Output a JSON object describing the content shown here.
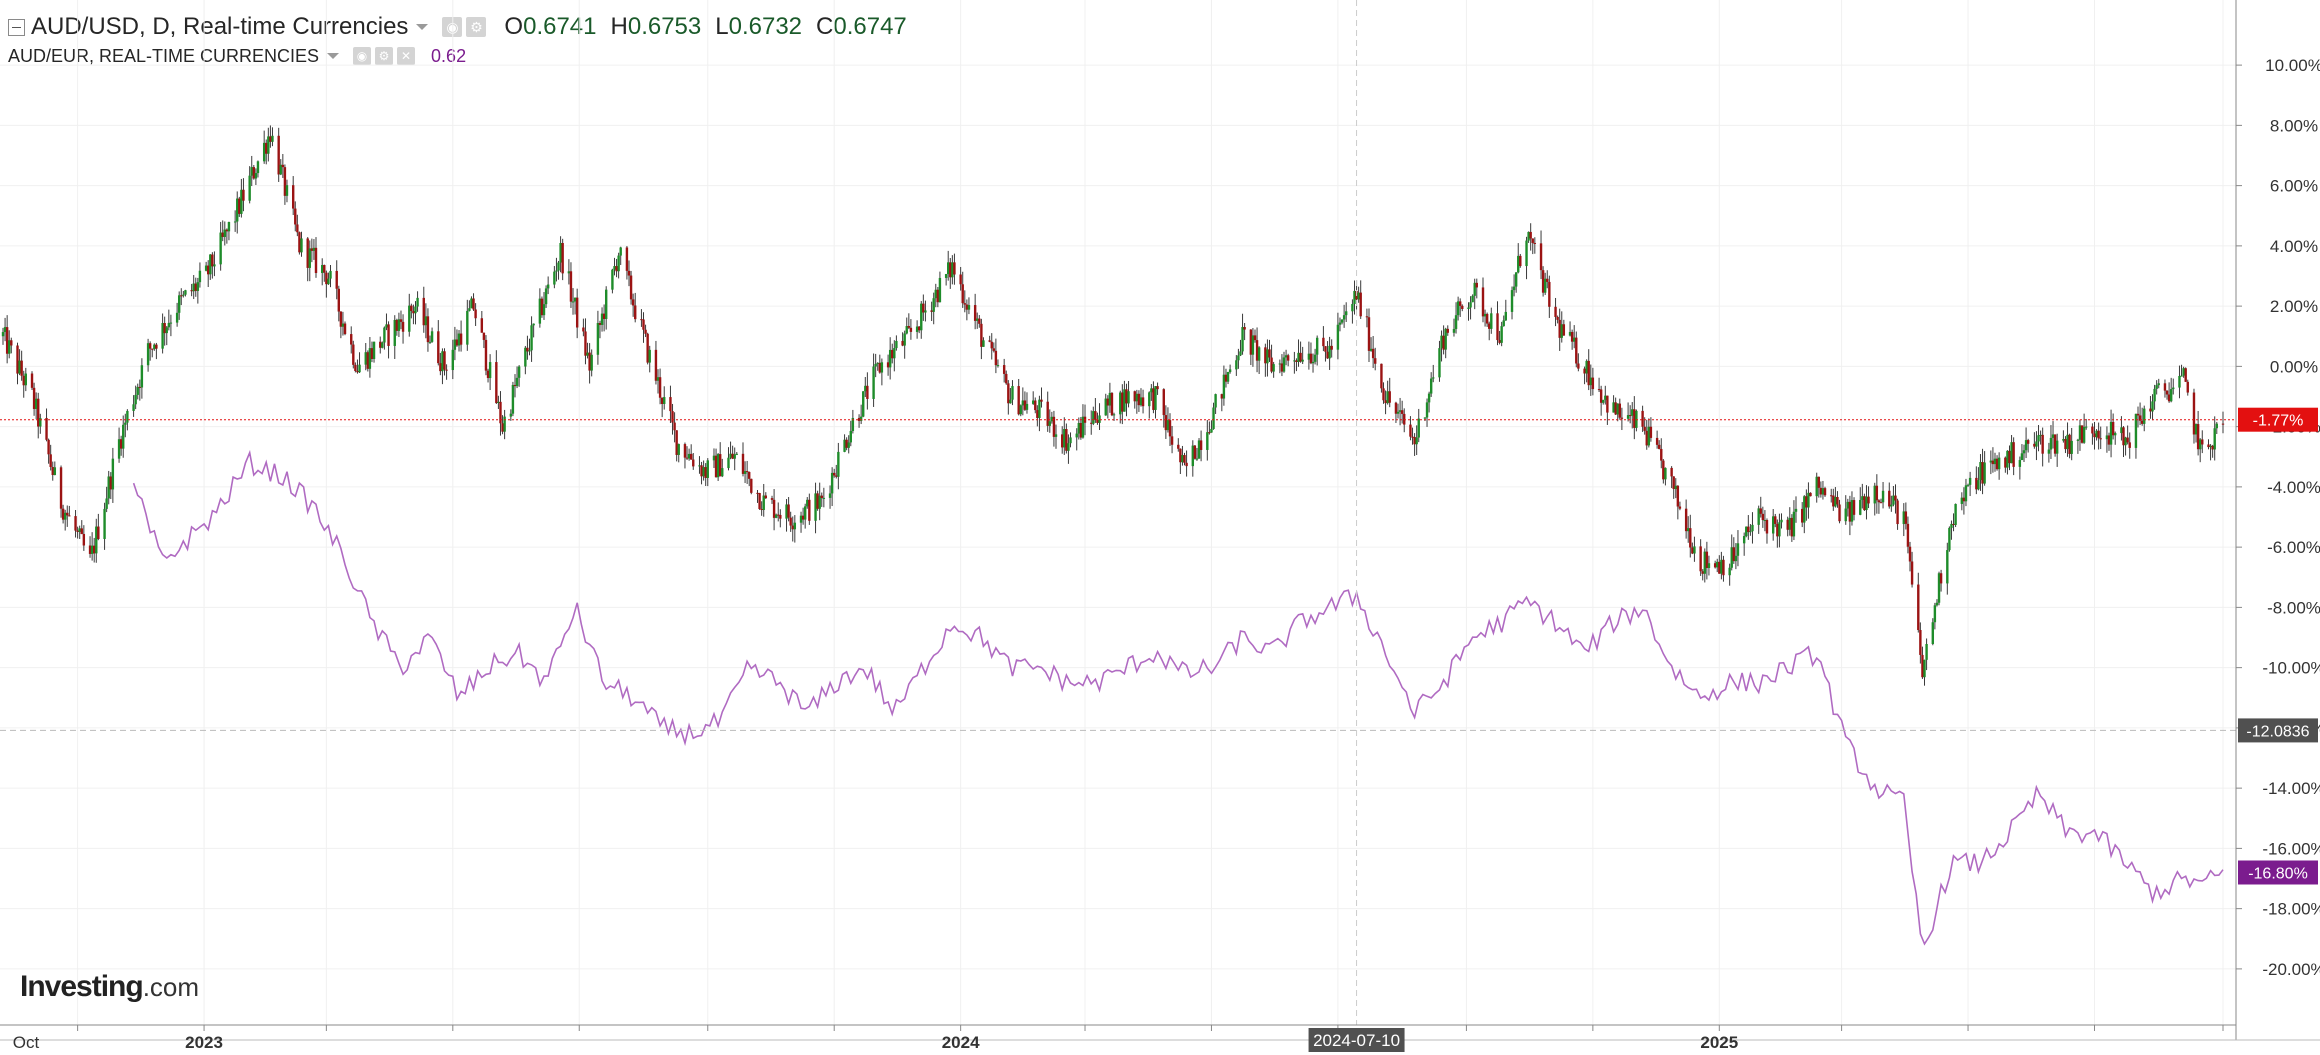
{
  "header": {
    "main_title": "AUD/USD, D, Real-time Currencies",
    "ohlc": [
      {
        "key": "O",
        "value": "0.6741"
      },
      {
        "key": "H",
        "value": "0.6753"
      },
      {
        "key": "L",
        "value": "0.6732"
      },
      {
        "key": "C",
        "value": "0.6747"
      }
    ],
    "compare_title": "AUD/EUR, REAL-TIME CURRENCIES",
    "compare_value": "0.62"
  },
  "logo": {
    "brand": "Investing",
    "suffix": ".com"
  },
  "colors": {
    "up": "#1e8c2a",
    "down": "#9b1313",
    "compare_line": "#b06bc2",
    "last_price_marker": "#e31010",
    "compare_marker": "#7b1c8e",
    "crosshair_marker": "#505050",
    "grid": "#f0f0f0"
  },
  "chart_data": {
    "type": "line",
    "percent_scale": true,
    "ylim": [
      -20.8,
      10.9
    ],
    "y_ticks": [
      "10.00%",
      "8.00%",
      "6.00%",
      "4.00%",
      "2.00%",
      "0.00%",
      "-2.00%",
      "-4.00%",
      "-6.00%",
      "-8.00%",
      "-10.00%",
      "-12.00%",
      "-14.00%",
      "-16.00%",
      "-18.00%",
      "-20.00%"
    ],
    "x_labels": [
      "Oct",
      "2023",
      "2024",
      "2025"
    ],
    "crosshair": {
      "x_label": "2024-07-10",
      "y_label": "-12.0836"
    },
    "series": [
      {
        "name": "AUD/USD",
        "style": "candlestick",
        "last_value_label": "-1.77%",
        "points": [
          [
            "2022-09-26",
            1.0
          ],
          [
            "2022-10-10",
            -1.0
          ],
          [
            "2022-10-24",
            -4.5
          ],
          [
            "2022-11-07",
            -6.5
          ],
          [
            "2022-11-21",
            -2.5
          ],
          [
            "2022-12-05",
            0.5
          ],
          [
            "2022-12-19",
            2.0
          ],
          [
            "2023-01-02",
            3.0
          ],
          [
            "2023-01-16",
            5.0
          ],
          [
            "2023-02-02",
            7.8
          ],
          [
            "2023-02-16",
            4.0
          ],
          [
            "2023-03-02",
            3.0
          ],
          [
            "2023-03-16",
            0.0
          ],
          [
            "2023-03-30",
            1.0
          ],
          [
            "2023-04-13",
            2.0
          ],
          [
            "2023-04-27",
            0.0
          ],
          [
            "2023-05-11",
            2.0
          ],
          [
            "2023-05-25",
            -2.0
          ],
          [
            "2023-06-08",
            1.0
          ],
          [
            "2023-06-22",
            3.8
          ],
          [
            "2023-07-06",
            0.0
          ],
          [
            "2023-07-20",
            3.8
          ],
          [
            "2023-08-03",
            0.5
          ],
          [
            "2023-08-17",
            -2.5
          ],
          [
            "2023-08-31",
            -3.5
          ],
          [
            "2023-09-14",
            -3.0
          ],
          [
            "2023-09-28",
            -4.5
          ],
          [
            "2023-10-12",
            -5.0
          ],
          [
            "2023-10-26",
            -4.5
          ],
          [
            "2023-11-09",
            -2.0
          ],
          [
            "2023-11-23",
            0.0
          ],
          [
            "2023-12-07",
            1.0
          ],
          [
            "2023-12-28",
            3.3
          ],
          [
            "2024-01-11",
            1.0
          ],
          [
            "2024-01-25",
            -1.0
          ],
          [
            "2024-02-08",
            -1.5
          ],
          [
            "2024-02-22",
            -2.5
          ],
          [
            "2024-03-07",
            -1.5
          ],
          [
            "2024-03-21",
            -1.0
          ],
          [
            "2024-04-04",
            -1.0
          ],
          [
            "2024-04-18",
            -3.5
          ],
          [
            "2024-05-02",
            -1.5
          ],
          [
            "2024-05-16",
            1.0
          ],
          [
            "2024-05-30",
            0.0
          ],
          [
            "2024-06-13",
            0.5
          ],
          [
            "2024-06-27",
            0.5
          ],
          [
            "2024-07-10",
            2.4
          ],
          [
            "2024-07-24",
            -1.0
          ],
          [
            "2024-08-07",
            -2.5
          ],
          [
            "2024-08-21",
            1.0
          ],
          [
            "2024-09-04",
            2.5
          ],
          [
            "2024-09-18",
            1.0
          ],
          [
            "2024-09-30",
            4.5
          ],
          [
            "2024-10-14",
            1.5
          ],
          [
            "2024-10-28",
            0.0
          ],
          [
            "2024-11-11",
            -1.5
          ],
          [
            "2024-11-25",
            -2.0
          ],
          [
            "2024-12-09",
            -4.0
          ],
          [
            "2024-12-23",
            -6.5
          ],
          [
            "2025-01-06",
            -6.5
          ],
          [
            "2025-01-20",
            -5.0
          ],
          [
            "2025-02-03",
            -5.5
          ],
          [
            "2025-02-17",
            -4.0
          ],
          [
            "2025-03-03",
            -5.0
          ],
          [
            "2025-03-17",
            -4.0
          ],
          [
            "2025-03-31",
            -5.0
          ],
          [
            "2025-04-09",
            -10.2
          ],
          [
            "2025-04-23",
            -5.0
          ],
          [
            "2025-05-07",
            -3.5
          ],
          [
            "2025-05-21",
            -3.0
          ],
          [
            "2025-06-04",
            -2.5
          ],
          [
            "2025-06-18",
            -2.5
          ],
          [
            "2025-07-02",
            -2.0
          ],
          [
            "2025-07-16",
            -2.5
          ],
          [
            "2025-07-30",
            -1.0
          ],
          [
            "2025-08-13",
            -0.5
          ],
          [
            "2025-08-22",
            -3.0
          ],
          [
            "2025-09-01",
            -1.77
          ]
        ]
      },
      {
        "name": "AUD/EUR",
        "style": "line",
        "last_value_label": "-16.80%",
        "points": [
          [
            "2022-11-28",
            -4.0
          ],
          [
            "2022-12-12",
            -6.5
          ],
          [
            "2023-01-05",
            -5.0
          ],
          [
            "2023-01-23",
            -3.2
          ],
          [
            "2023-02-09",
            -3.7
          ],
          [
            "2023-02-23",
            -4.7
          ],
          [
            "2023-03-09",
            -6.3
          ],
          [
            "2023-03-23",
            -8.5
          ],
          [
            "2023-04-06",
            -10.0
          ],
          [
            "2023-04-20",
            -9.0
          ],
          [
            "2023-05-04",
            -11.0
          ],
          [
            "2023-05-18",
            -10.0
          ],
          [
            "2023-06-01",
            -9.5
          ],
          [
            "2023-06-15",
            -10.5
          ],
          [
            "2023-06-29",
            -8.0
          ],
          [
            "2023-07-13",
            -10.5
          ],
          [
            "2023-07-27",
            -11.0
          ],
          [
            "2023-08-10",
            -12.0
          ],
          [
            "2023-08-24",
            -12.2
          ],
          [
            "2023-09-07",
            -11.8
          ],
          [
            "2023-09-21",
            -10.0
          ],
          [
            "2023-10-05",
            -10.5
          ],
          [
            "2023-10-19",
            -11.5
          ],
          [
            "2023-11-02",
            -10.5
          ],
          [
            "2023-11-16",
            -10.0
          ],
          [
            "2023-11-30",
            -11.5
          ],
          [
            "2023-12-14",
            -10.0
          ],
          [
            "2023-12-28",
            -8.5
          ],
          [
            "2024-01-11",
            -9.0
          ],
          [
            "2024-01-25",
            -10.0
          ],
          [
            "2024-02-08",
            -10.0
          ],
          [
            "2024-02-22",
            -10.5
          ],
          [
            "2024-03-07",
            -10.5
          ],
          [
            "2024-03-21",
            -10.0
          ],
          [
            "2024-04-04",
            -9.5
          ],
          [
            "2024-04-18",
            -10.2
          ],
          [
            "2024-05-02",
            -10.0
          ],
          [
            "2024-05-16",
            -9.0
          ],
          [
            "2024-05-30",
            -9.5
          ],
          [
            "2024-06-13",
            -8.5
          ],
          [
            "2024-06-27",
            -8.0
          ],
          [
            "2024-07-10",
            -7.6
          ],
          [
            "2024-07-24",
            -9.5
          ],
          [
            "2024-08-07",
            -11.5
          ],
          [
            "2024-08-21",
            -10.5
          ],
          [
            "2024-09-04",
            -9.0
          ],
          [
            "2024-09-18",
            -8.5
          ],
          [
            "2024-09-30",
            -7.8
          ],
          [
            "2024-10-14",
            -8.5
          ],
          [
            "2024-10-28",
            -9.5
          ],
          [
            "2024-11-11",
            -8.5
          ],
          [
            "2024-11-25",
            -8.0
          ],
          [
            "2024-12-09",
            -10.0
          ],
          [
            "2024-12-23",
            -11.0
          ],
          [
            "2025-01-06",
            -10.5
          ],
          [
            "2025-01-20",
            -10.5
          ],
          [
            "2025-02-03",
            -10.0
          ],
          [
            "2025-02-17",
            -9.5
          ],
          [
            "2025-03-03",
            -12.5
          ],
          [
            "2025-03-17",
            -14.0
          ],
          [
            "2025-03-31",
            -14.5
          ],
          [
            "2025-04-09",
            -19.4
          ],
          [
            "2025-04-23",
            -16.5
          ],
          [
            "2025-05-07",
            -16.5
          ],
          [
            "2025-05-21",
            -15.5
          ],
          [
            "2025-06-04",
            -14.2
          ],
          [
            "2025-06-18",
            -15.5
          ],
          [
            "2025-07-02",
            -15.5
          ],
          [
            "2025-07-16",
            -16.5
          ],
          [
            "2025-07-30",
            -17.5
          ],
          [
            "2025-08-13",
            -17.0
          ],
          [
            "2025-08-22",
            -17.2
          ],
          [
            "2025-09-01",
            -16.8
          ]
        ]
      }
    ]
  }
}
